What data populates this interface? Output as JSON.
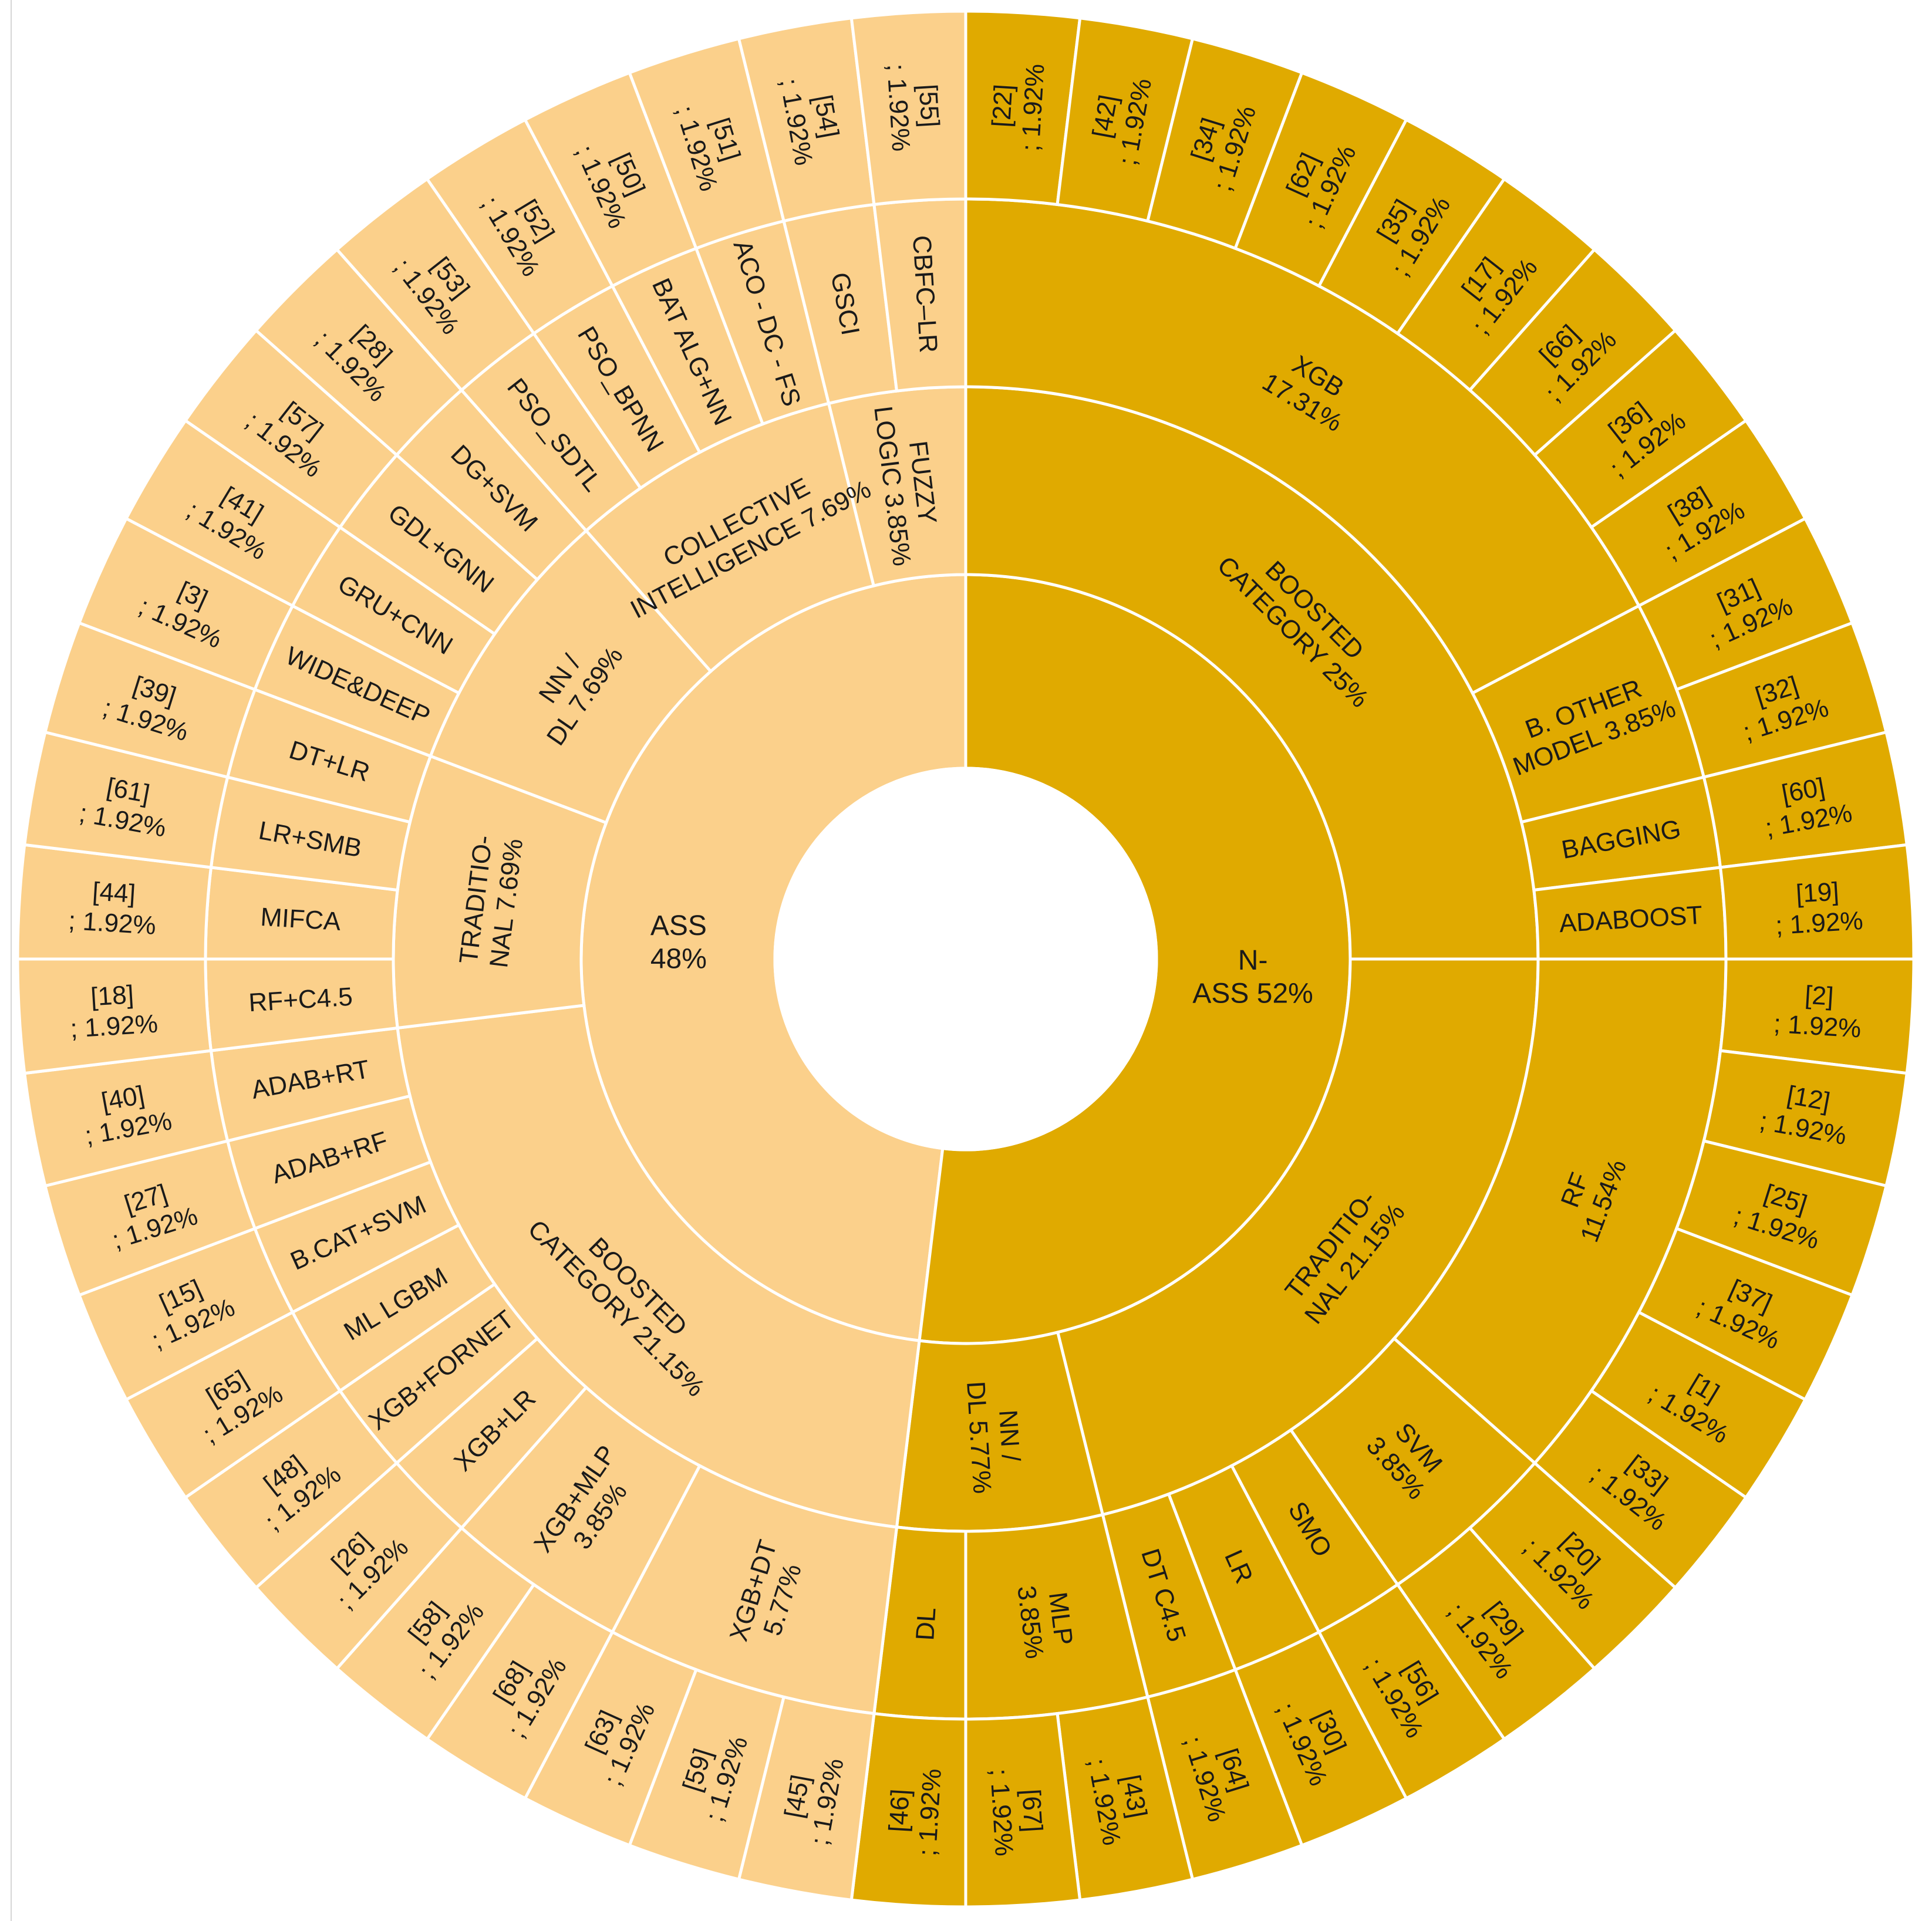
{
  "chart_data": {
    "type": "sunburst",
    "title": "",
    "colors": {
      "ASS": "#fbd08b",
      "N-ASS": "#e0aa00",
      "stroke": "#ffffff"
    },
    "rings": [
      [
        {
          "id": "ass",
          "group": "ASS",
          "label": "ASS 48%",
          "value": 25
        },
        {
          "id": "nass",
          "group": "N-ASS",
          "label": "N-ASS 52%",
          "value": 27
        }
      ],
      [
        {
          "parent": "nass",
          "group": "N-ASS",
          "label": "BOOSTED CATEGORY 25%",
          "value": 13
        },
        {
          "parent": "nass",
          "group": "N-ASS",
          "label": "TRADITIO-NAL 21.15%",
          "value": 11
        },
        {
          "parent": "nass",
          "group": "N-ASS",
          "label": "NN / DL 5.77%",
          "value": 3
        },
        {
          "parent": "ass",
          "group": "ASS",
          "label": "BOOSTED CATEGORY 21.15%",
          "value": 11
        },
        {
          "parent": "ass",
          "group": "ASS",
          "label": "TRADITIO-NAL 7.69%",
          "value": 4
        },
        {
          "parent": "ass",
          "group": "ASS",
          "label": "NN / DL 7.69%",
          "value": 4
        },
        {
          "parent": "ass",
          "group": "ASS",
          "label": "COLLECTIVE INTELLIGENCE 7.69%",
          "value": 4
        },
        {
          "parent": "ass",
          "group": "ASS",
          "label": "FUZZY LOGIC 3.85%",
          "value": 2
        }
      ],
      [
        {
          "group": "N-ASS",
          "label": "XGB 17.31%",
          "value": 9
        },
        {
          "group": "N-ASS",
          "label": "B. OTHER MODEL 3.85%",
          "value": 2
        },
        {
          "group": "N-ASS",
          "label": "BAGGING",
          "value": 1
        },
        {
          "group": "N-ASS",
          "label": "ADABOOST",
          "value": 1
        },
        {
          "group": "N-ASS",
          "label": "RF 11.54%",
          "value": 6
        },
        {
          "group": "N-ASS",
          "label": "SVM 3.85%",
          "value": 2
        },
        {
          "group": "N-ASS",
          "label": "SMO",
          "value": 1
        },
        {
          "group": "N-ASS",
          "label": "LR",
          "value": 1
        },
        {
          "group": "N-ASS",
          "label": "DT C4.5",
          "value": 1
        },
        {
          "group": "N-ASS",
          "label": "MLP 3.85%",
          "value": 2
        },
        {
          "group": "N-ASS",
          "label": "DL",
          "value": 1
        },
        {
          "group": "ASS",
          "label": "XGB+DT 5.77%",
          "value": 3
        },
        {
          "group": "ASS",
          "label": "XGB+MLP 3.85%",
          "value": 2
        },
        {
          "group": "ASS",
          "label": "XGB+LR",
          "value": 1
        },
        {
          "group": "ASS",
          "label": "XGB+FORNET",
          "value": 1
        },
        {
          "group": "ASS",
          "label": "ML LGBM",
          "value": 1
        },
        {
          "group": "ASS",
          "label": "B.CAT+SVM",
          "value": 1
        },
        {
          "group": "ASS",
          "label": "ADAB+RF",
          "value": 1
        },
        {
          "group": "ASS",
          "label": "ADAB+RT",
          "value": 1
        },
        {
          "group": "ASS",
          "label": "RF+C4.5",
          "value": 1
        },
        {
          "group": "ASS",
          "label": "MIFCA",
          "value": 1
        },
        {
          "group": "ASS",
          "label": "LR+SMB",
          "value": 1
        },
        {
          "group": "ASS",
          "label": "DT+LR",
          "value": 1
        },
        {
          "group": "ASS",
          "label": "WIDE&DEEP",
          "value": 1
        },
        {
          "group": "ASS",
          "label": "GRU+CNN",
          "value": 1
        },
        {
          "group": "ASS",
          "label": "GDL+GNN",
          "value": 1
        },
        {
          "group": "ASS",
          "label": "DG+SVM",
          "value": 1
        },
        {
          "group": "ASS",
          "label": "PSO_SDTL",
          "value": 1
        },
        {
          "group": "ASS",
          "label": "PSO_BPNN",
          "value": 1
        },
        {
          "group": "ASS",
          "label": "BAT ALG+NN",
          "value": 1
        },
        {
          "group": "ASS",
          "label": "ACO - DC - FS",
          "value": 1
        },
        {
          "group": "ASS",
          "label": "GSCI",
          "value": 1
        },
        {
          "group": "ASS",
          "label": "CBFC–LR",
          "value": 1
        }
      ],
      [
        {
          "group": "N-ASS",
          "label": "[22] ; 1.92%",
          "value": 1
        },
        {
          "group": "N-ASS",
          "label": "[42] ; 1.92%",
          "value": 1
        },
        {
          "group": "N-ASS",
          "label": "[34] ; 1.92%",
          "value": 1
        },
        {
          "group": "N-ASS",
          "label": "[62] ; 1.92%",
          "value": 1
        },
        {
          "group": "N-ASS",
          "label": "[35] ; 1.92%",
          "value": 1
        },
        {
          "group": "N-ASS",
          "label": "[17] ; 1.92%",
          "value": 1
        },
        {
          "group": "N-ASS",
          "label": "[66] ; 1.92%",
          "value": 1
        },
        {
          "group": "N-ASS",
          "label": "[36] ; 1.92%",
          "value": 1
        },
        {
          "group": "N-ASS",
          "label": "[38] ; 1.92%",
          "value": 1
        },
        {
          "group": "N-ASS",
          "label": "[31] ; 1.92%",
          "value": 1
        },
        {
          "group": "N-ASS",
          "label": "[32] ; 1.92%",
          "value": 1
        },
        {
          "group": "N-ASS",
          "label": "[60] ; 1.92%",
          "value": 1
        },
        {
          "group": "N-ASS",
          "label": "[19] ; 1.92%",
          "value": 1
        },
        {
          "group": "N-ASS",
          "label": "[2] ; 1.92%",
          "value": 1
        },
        {
          "group": "N-ASS",
          "label": "[12] ; 1.92%",
          "value": 1
        },
        {
          "group": "N-ASS",
          "label": "[25] ; 1.92%",
          "value": 1
        },
        {
          "group": "N-ASS",
          "label": "[37] ; 1.92%",
          "value": 1
        },
        {
          "group": "N-ASS",
          "label": "[1] ; 1.92%",
          "value": 1
        },
        {
          "group": "N-ASS",
          "label": "[33] ; 1.92%",
          "value": 1
        },
        {
          "group": "N-ASS",
          "label": "[20] ; 1.92%",
          "value": 1
        },
        {
          "group": "N-ASS",
          "label": "[29] ; 1.92%",
          "value": 1
        },
        {
          "group": "N-ASS",
          "label": "[56] ; 1.92%",
          "value": 1
        },
        {
          "group": "N-ASS",
          "label": "[30] ; 1.92%",
          "value": 1
        },
        {
          "group": "N-ASS",
          "label": "[64] ; 1.92%",
          "value": 1
        },
        {
          "group": "N-ASS",
          "label": "[43] ; 1.92%",
          "value": 1
        },
        {
          "group": "N-ASS",
          "label": "[67] ; 1.92%",
          "value": 1
        },
        {
          "group": "N-ASS",
          "label": "[46] ; 1.92%",
          "value": 1
        },
        {
          "group": "ASS",
          "label": "[45] ; 1.92%",
          "value": 1
        },
        {
          "group": "ASS",
          "label": "[59] ; 1.92%",
          "value": 1
        },
        {
          "group": "ASS",
          "label": "[63] ; 1.92%",
          "value": 1
        },
        {
          "group": "ASS",
          "label": "[68] ; 1.92%",
          "value": 1
        },
        {
          "group": "ASS",
          "label": "[58] ; 1.92%",
          "value": 1
        },
        {
          "group": "ASS",
          "label": "[26] ; 1.92%",
          "value": 1
        },
        {
          "group": "ASS",
          "label": "[48] ; 1.92%",
          "value": 1
        },
        {
          "group": "ASS",
          "label": "[65] ; 1.92%",
          "value": 1
        },
        {
          "group": "ASS",
          "label": "[15] ; 1.92%",
          "value": 1
        },
        {
          "group": "ASS",
          "label": "[27] ; 1.92%",
          "value": 1
        },
        {
          "group": "ASS",
          "label": "[40] ; 1.92%",
          "value": 1
        },
        {
          "group": "ASS",
          "label": "[18] ; 1.92%",
          "value": 1
        },
        {
          "group": "ASS",
          "label": "[44] ; 1.92%",
          "value": 1
        },
        {
          "group": "ASS",
          "label": "[61] ; 1.92%",
          "value": 1
        },
        {
          "group": "ASS",
          "label": "[39] ; 1.92%",
          "value": 1
        },
        {
          "group": "ASS",
          "label": "[3] ; 1.92%",
          "value": 1
        },
        {
          "group": "ASS",
          "label": "[41] ; 1.92%",
          "value": 1
        },
        {
          "group": "ASS",
          "label": "[57] ; 1.92%",
          "value": 1
        },
        {
          "group": "ASS",
          "label": "[28] ; 1.92%",
          "value": 1
        },
        {
          "group": "ASS",
          "label": "[53] ; 1.92%",
          "value": 1
        },
        {
          "group": "ASS",
          "label": "[52] ; 1.92%",
          "value": 1
        },
        {
          "group": "ASS",
          "label": "[50] ; 1.92%",
          "value": 1
        },
        {
          "group": "ASS",
          "label": "[51] ; 1.92%",
          "value": 1
        },
        {
          "group": "ASS",
          "label": "[54] ; 1.92%",
          "value": 1
        },
        {
          "group": "ASS",
          "label": "[55] ; 1.92%",
          "value": 1
        }
      ]
    ]
  }
}
